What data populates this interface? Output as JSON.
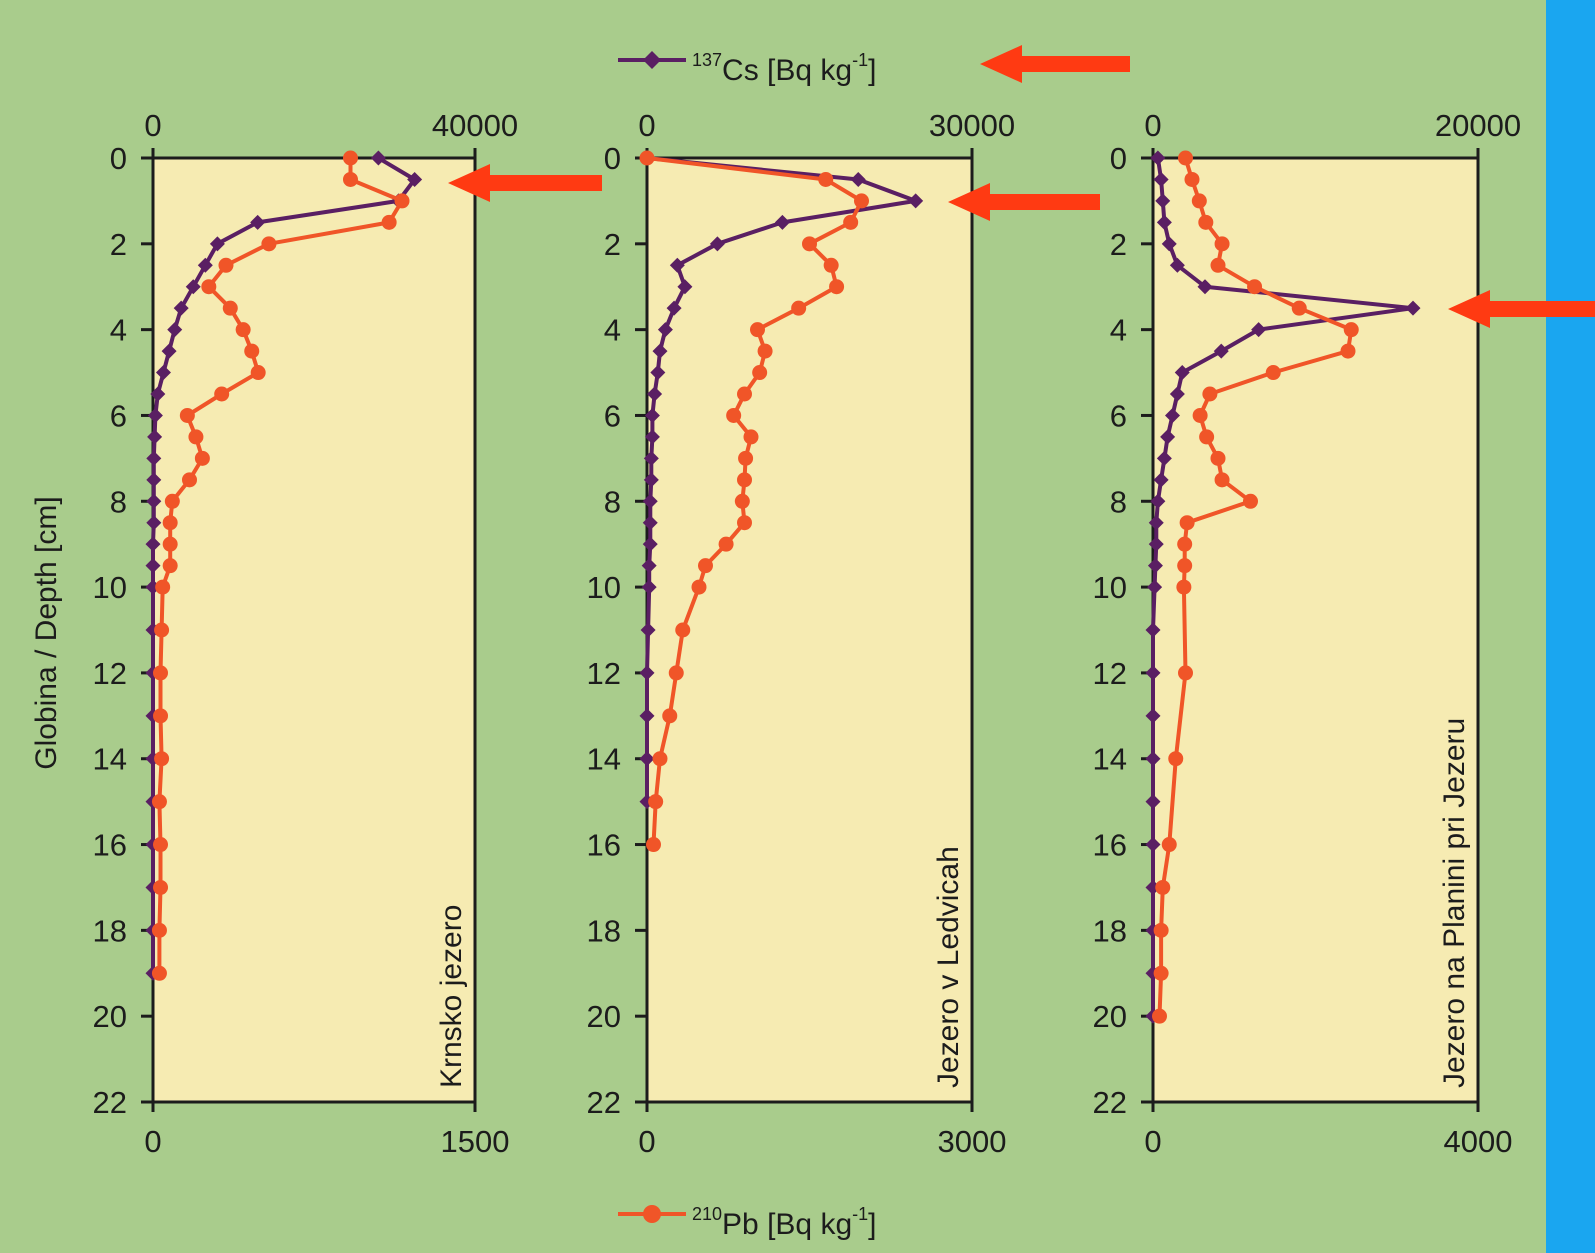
{
  "colors": {
    "page_background": "#a9cc8c",
    "plot_background": "#f6ebb2",
    "right_border": "#1aa6f0",
    "cs_series": "#5a1f63",
    "pb_series": "#f05528",
    "arrow": "#ff3a12",
    "axis": "#1c1c1c"
  },
  "legend": {
    "cs": {
      "sup": "137",
      "text": "Cs [Bq kg",
      "unit_sup": "-1",
      "close": "]",
      "marker": "diamond"
    },
    "pb": {
      "sup": "210",
      "text": "Pb [Bq kg",
      "unit_sup": "-1",
      "close": "]",
      "marker": "circle"
    }
  },
  "chart_data": [
    {
      "type": "line",
      "panel_label": "Krnsko jezero",
      "ylabel": "Globina / Depth [cm]",
      "y_ticks": [
        0,
        2,
        4,
        6,
        8,
        10,
        12,
        14,
        16,
        18,
        20,
        22
      ],
      "ylim": [
        0,
        22
      ],
      "y_reversed": true,
      "top_axis": {
        "series": "137Cs",
        "xlim": [
          0,
          40000
        ],
        "tick_labels": [
          "0",
          "40000"
        ]
      },
      "bottom_axis": {
        "series": "210Pb",
        "xlim": [
          0,
          1500
        ],
        "tick_labels": [
          "0",
          "1500"
        ]
      },
      "series": [
        {
          "name": "137Cs [Bq kg-1]",
          "axis": "top",
          "marker": "diamond",
          "depth": [
            0,
            0.5,
            1,
            1.5,
            2,
            2.5,
            3,
            3.5,
            4,
            4.5,
            5,
            5.5,
            6,
            6.5,
            7,
            7.5,
            8,
            8.5,
            9,
            9.5,
            10,
            11,
            12,
            13,
            14,
            15,
            16,
            17,
            18,
            19
          ],
          "values": [
            28000,
            32500,
            30500,
            13000,
            8000,
            6500,
            5000,
            3500,
            2700,
            2000,
            1300,
            600,
            300,
            200,
            100,
            100,
            100,
            100,
            0,
            0,
            0,
            0,
            0,
            0,
            0,
            0,
            0,
            0,
            0,
            0
          ]
        },
        {
          "name": "210Pb [Bq kg-1]",
          "axis": "bottom",
          "marker": "circle",
          "depth": [
            0,
            0.5,
            1,
            1.5,
            2,
            2.5,
            3,
            3.5,
            4,
            4.5,
            5,
            5.5,
            6,
            6.5,
            7,
            7.5,
            8,
            8.5,
            9,
            9.5,
            10,
            11,
            12,
            13,
            14,
            15,
            16,
            17,
            18,
            19
          ],
          "values": [
            920,
            920,
            1160,
            1100,
            540,
            340,
            260,
            360,
            420,
            460,
            490,
            320,
            160,
            200,
            230,
            170,
            90,
            80,
            80,
            80,
            45,
            40,
            35,
            35,
            40,
            30,
            35,
            35,
            30,
            30
          ]
        }
      ]
    },
    {
      "type": "line",
      "panel_label": "Jezero v Ledvicah",
      "y_ticks": [
        0,
        2,
        4,
        6,
        8,
        10,
        12,
        14,
        16,
        18,
        20,
        22
      ],
      "ylim": [
        0,
        22
      ],
      "y_reversed": true,
      "top_axis": {
        "series": "137Cs",
        "xlim": [
          0,
          30000
        ],
        "tick_labels": [
          "0",
          "30000"
        ]
      },
      "bottom_axis": {
        "series": "210Pb",
        "xlim": [
          0,
          3000
        ],
        "tick_labels": [
          "0",
          "3000"
        ]
      },
      "series": [
        {
          "name": "137Cs [Bq kg-1]",
          "axis": "top",
          "marker": "diamond",
          "depth": [
            0,
            0.5,
            1,
            1.5,
            2,
            2.5,
            3,
            3.5,
            4,
            4.5,
            5,
            5.5,
            6,
            6.5,
            7,
            7.5,
            8,
            8.5,
            9,
            9.5,
            10,
            11,
            12,
            13,
            14,
            15
          ],
          "values": [
            0,
            19500,
            24800,
            12500,
            6500,
            2800,
            3500,
            2500,
            1700,
            1200,
            1000,
            700,
            500,
            500,
            400,
            400,
            300,
            300,
            300,
            200,
            200,
            100,
            0,
            0,
            0,
            0
          ]
        },
        {
          "name": "210Pb [Bq kg-1]",
          "axis": "bottom",
          "marker": "circle",
          "depth": [
            0,
            0.5,
            1,
            1.5,
            2,
            2.5,
            3,
            3.5,
            4,
            4.5,
            5,
            5.5,
            6,
            6.5,
            7,
            7.5,
            8,
            8.5,
            9,
            9.5,
            10,
            11,
            12,
            13,
            14,
            15,
            16
          ],
          "values": [
            0,
            1650,
            1980,
            1880,
            1500,
            1700,
            1750,
            1400,
            1020,
            1090,
            1040,
            900,
            800,
            960,
            910,
            900,
            880,
            900,
            730,
            540,
            480,
            330,
            270,
            210,
            120,
            80,
            60
          ]
        }
      ]
    },
    {
      "type": "line",
      "panel_label": "Jezero na Planini pri Jezeru",
      "y_ticks": [
        0,
        2,
        4,
        6,
        8,
        10,
        12,
        14,
        16,
        18,
        20,
        22
      ],
      "ylim": [
        0,
        22
      ],
      "y_reversed": true,
      "top_axis": {
        "series": "137Cs",
        "xlim": [
          0,
          20000
        ],
        "tick_labels": [
          "0",
          "20000"
        ]
      },
      "bottom_axis": {
        "series": "210Pb",
        "xlim": [
          0,
          4000
        ],
        "tick_labels": [
          "0",
          "4000"
        ]
      },
      "series": [
        {
          "name": "137Cs [Bq kg-1]",
          "axis": "top",
          "marker": "diamond",
          "depth": [
            0,
            0.5,
            1,
            1.5,
            2,
            2.5,
            3,
            3.5,
            4,
            4.5,
            5,
            5.5,
            6,
            6.5,
            7,
            7.5,
            8,
            8.5,
            9,
            9.5,
            10,
            11,
            12,
            13,
            14,
            15,
            16,
            17,
            18,
            19,
            20
          ],
          "values": [
            300,
            500,
            600,
            700,
            1000,
            1500,
            3200,
            16000,
            6500,
            4200,
            1800,
            1500,
            1200,
            900,
            700,
            500,
            300,
            200,
            200,
            150,
            100,
            0,
            0,
            0,
            0,
            0,
            0,
            0,
            0,
            0,
            0
          ]
        },
        {
          "name": "210Pb [Bq kg-1]",
          "axis": "bottom",
          "marker": "circle",
          "depth": [
            0,
            0.5,
            1,
            1.5,
            2,
            2.5,
            3,
            3.5,
            4,
            4.5,
            5,
            5.5,
            6,
            6.5,
            7,
            7.5,
            8,
            8.5,
            9,
            9.5,
            10,
            12,
            14,
            16,
            17,
            18,
            19,
            20
          ],
          "values": [
            400,
            480,
            570,
            650,
            850,
            800,
            1250,
            1800,
            2440,
            2400,
            1480,
            700,
            580,
            660,
            800,
            850,
            1200,
            420,
            390,
            390,
            380,
            400,
            280,
            200,
            120,
            100,
            100,
            80
          ]
        }
      ]
    }
  ]
}
